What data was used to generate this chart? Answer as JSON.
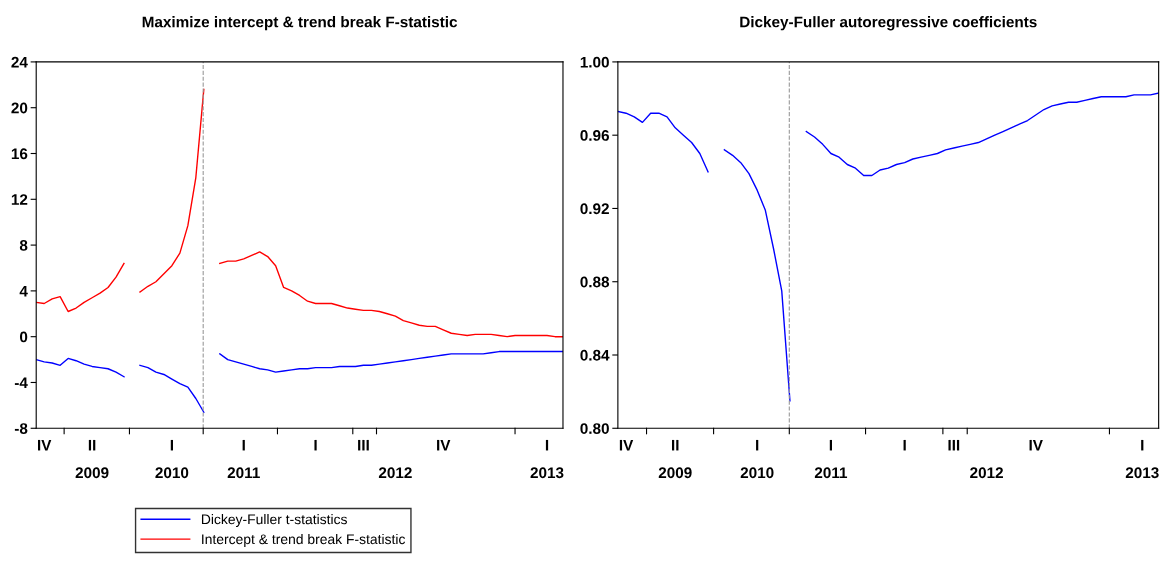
{
  "chart_data": [
    {
      "type": "line",
      "title": "Maximize intercept & trend break F-statistic",
      "ylim": [
        -8,
        24
      ],
      "yticks": [
        -8,
        -4,
        0,
        4,
        8,
        12,
        16,
        20,
        24
      ],
      "categories": [
        null,
        "IV",
        null,
        null,
        null,
        null,
        null,
        "II\n2009",
        null,
        null,
        null,
        null,
        null,
        null,
        null,
        null,
        null,
        "I\n2010",
        null,
        null,
        null,
        null,
        null,
        null,
        null,
        null,
        "I\n2011",
        null,
        null,
        null,
        null,
        null,
        null,
        null,
        null,
        "I",
        null,
        null,
        null,
        null,
        null,
        "III",
        null,
        null,
        null,
        "\n2012",
        null,
        null,
        null,
        null,
        null,
        "IV",
        null,
        null,
        null,
        null,
        null,
        null,
        null,
        null,
        null,
        null,
        null,
        null,
        "I\n2013",
        null,
        null
      ],
      "legend": "bottom",
      "series": [
        {
          "name": "Dickey-Fuller t-statistics",
          "color": "#0000ff",
          "values": [
            -2.0,
            -2.2,
            -2.3,
            -2.5,
            -1.9,
            -2.1,
            -2.4,
            -2.6,
            -2.7,
            -2.8,
            -3.1,
            -3.5,
            null,
            -2.5,
            -2.7,
            -3.1,
            -3.3,
            -3.7,
            -4.1,
            -4.4,
            -5.4,
            -6.6,
            null,
            -1.5,
            -2.0,
            -2.2,
            -2.4,
            -2.6,
            -2.8,
            -2.9,
            -3.1,
            -3.0,
            -2.9,
            -2.8,
            -2.8,
            -2.7,
            -2.7,
            -2.7,
            -2.6,
            -2.6,
            -2.6,
            -2.5,
            -2.5,
            -2.4,
            -2.3,
            -2.2,
            -2.1,
            -2.0,
            -1.9,
            -1.8,
            -1.7,
            -1.6,
            -1.5,
            -1.5,
            -1.5,
            -1.5,
            -1.5,
            -1.4,
            -1.3,
            -1.3,
            -1.3,
            -1.3,
            -1.3,
            -1.3,
            -1.3,
            -1.3,
            -1.3
          ]
        },
        {
          "name": "Intercept & trend break F-statistic",
          "color": "#ff0000",
          "values": [
            3.0,
            2.9,
            3.3,
            3.5,
            2.2,
            2.5,
            3.0,
            3.4,
            3.8,
            4.3,
            5.2,
            6.4,
            null,
            3.9,
            4.4,
            4.8,
            5.5,
            6.2,
            7.3,
            9.7,
            13.9,
            21.6,
            null,
            6.4,
            6.6,
            6.6,
            6.8,
            7.1,
            7.4,
            7.0,
            6.2,
            4.3,
            4.0,
            3.6,
            3.1,
            2.9,
            2.9,
            2.9,
            2.7,
            2.5,
            2.4,
            2.3,
            2.3,
            2.2,
            2.0,
            1.8,
            1.4,
            1.2,
            1.0,
            0.9,
            0.9,
            0.6,
            0.3,
            0.2,
            0.1,
            0.2,
            0.2,
            0.2,
            0.1,
            0.0,
            0.1,
            0.1,
            0.1,
            0.1,
            0.1,
            0.0,
            0.0
          ]
        }
      ]
    },
    {
      "type": "line",
      "title": "Dickey-Fuller autoregressive coefficients",
      "ylim": [
        0.8,
        1.0
      ],
      "yticks": [
        {
          "value": 0.8,
          "label": "0.80"
        },
        0.84,
        0.88,
        0.92,
        0.96,
        {
          "value": 1.0,
          "label": "1.00"
        }
      ],
      "categories": [
        null,
        "IV",
        null,
        null,
        null,
        null,
        null,
        "II\n2009",
        null,
        null,
        null,
        null,
        null,
        null,
        null,
        null,
        null,
        "I\n2010",
        null,
        null,
        null,
        null,
        null,
        null,
        null,
        null,
        "I\n2011",
        null,
        null,
        null,
        null,
        null,
        null,
        null,
        null,
        "I",
        null,
        null,
        null,
        null,
        null,
        "III",
        null,
        null,
        null,
        "\n2012",
        null,
        null,
        null,
        null,
        null,
        "IV",
        null,
        null,
        null,
        null,
        null,
        null,
        null,
        null,
        null,
        null,
        null,
        null,
        "I\n2013",
        null,
        null
      ],
      "series": [
        {
          "color": "#0000ff",
          "values": [
            0.973,
            0.972,
            0.97,
            0.967,
            0.972,
            0.972,
            0.97,
            0.964,
            0.96,
            0.956,
            0.95,
            0.94,
            null,
            0.952,
            0.949,
            0.945,
            0.939,
            0.93,
            0.919,
            0.898,
            0.875,
            0.815,
            null,
            0.962,
            0.959,
            0.955,
            0.95,
            0.948,
            0.944,
            0.942,
            0.938,
            0.938,
            0.941,
            0.942,
            0.944,
            0.945,
            0.947,
            0.948,
            0.949,
            0.95,
            0.952,
            0.953,
            0.954,
            0.955,
            0.956,
            0.958,
            0.96,
            0.962,
            0.964,
            0.966,
            0.968,
            0.971,
            0.974,
            0.976,
            0.977,
            0.978,
            0.978,
            0.979,
            0.98,
            0.981,
            0.981,
            0.981,
            0.981,
            0.982,
            0.982,
            0.982,
            0.983
          ]
        }
      ]
    }
  ]
}
